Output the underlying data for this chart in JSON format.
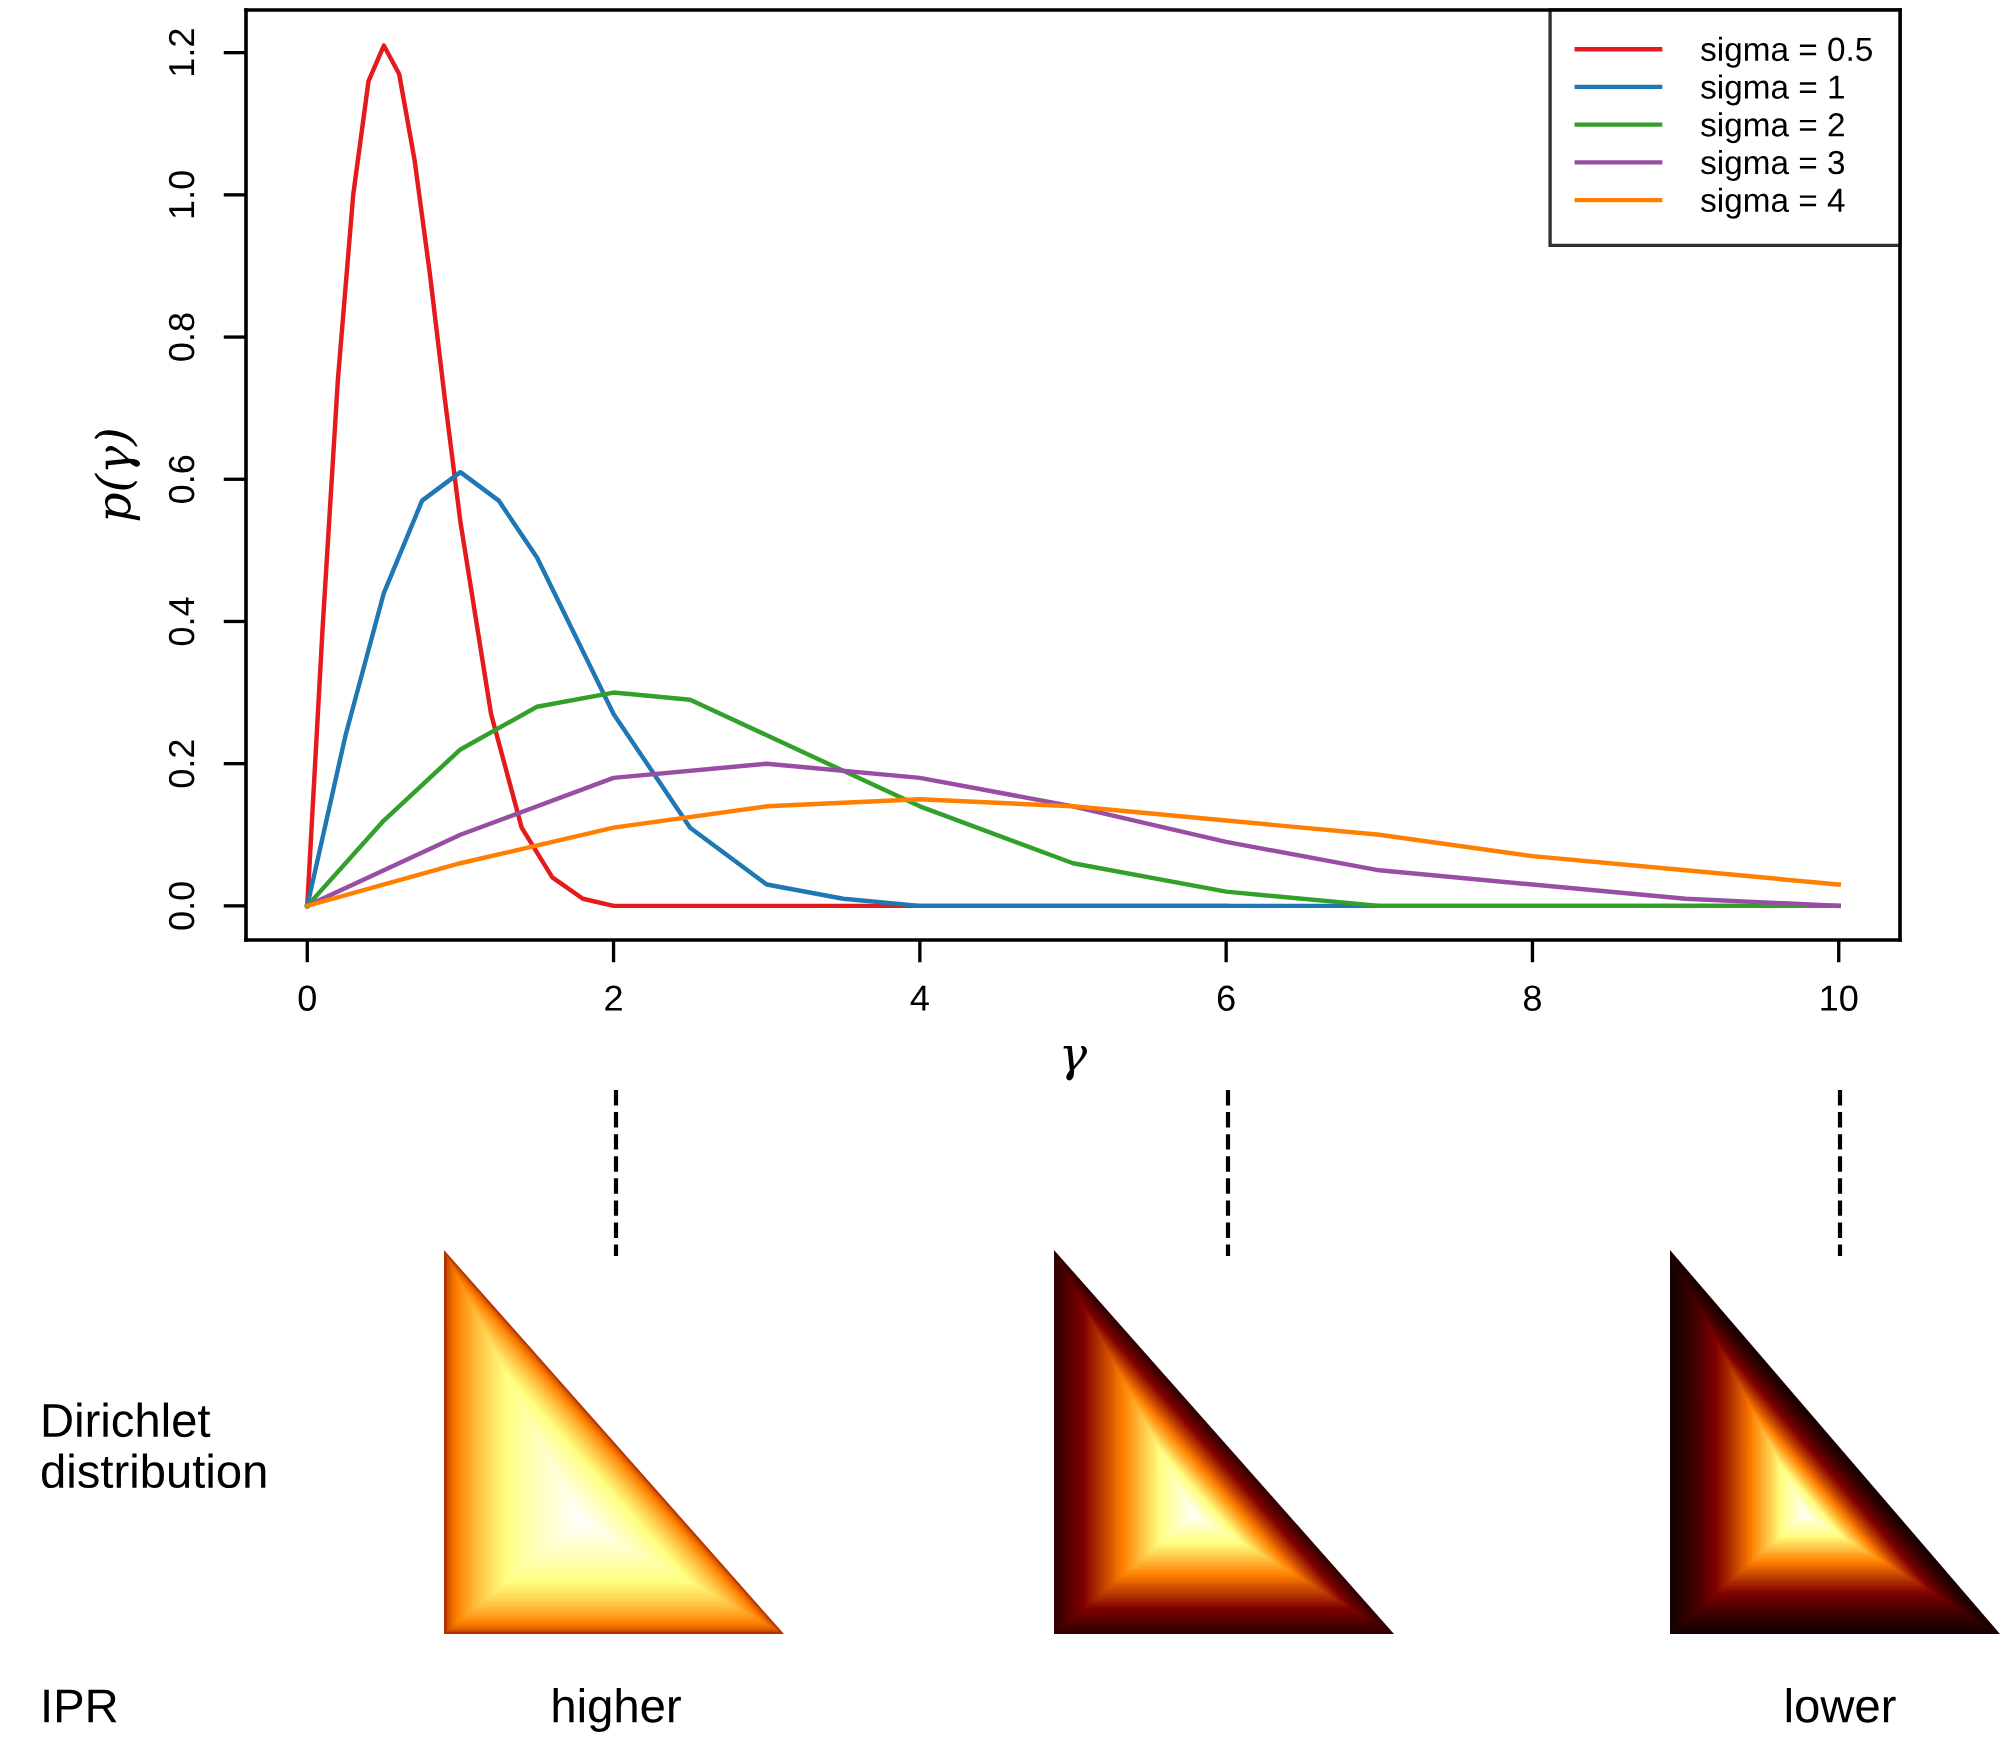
{
  "chart_data": {
    "type": "line",
    "xlabel": "γ",
    "ylabel": "p(γ)",
    "xlim": [
      -0.4,
      10.4
    ],
    "ylim": [
      -0.048,
      1.26
    ],
    "xticks": [
      0,
      2,
      4,
      6,
      8,
      10
    ],
    "yticks": [
      {
        "value": 0,
        "label": "0.0"
      },
      0.2,
      0.4,
      0.6,
      0.8,
      {
        "value": 1,
        "label": "1.0"
      },
      1.2
    ],
    "grid": false,
    "legend": "top right",
    "marker": "none",
    "line_style": "solid",
    "series": [
      {
        "name": "sigma = 0.5",
        "color": "#e41a1c",
        "x": [
          0,
          0.1,
          0.2,
          0.3,
          0.4,
          0.5,
          0.6,
          0.7,
          0.8,
          0.9,
          1.0,
          1.2,
          1.4,
          1.6,
          1.8,
          2,
          2.5,
          3,
          4,
          6
        ],
        "values": [
          0,
          0.39,
          0.74,
          1.0,
          1.16,
          1.21,
          1.17,
          1.05,
          0.89,
          0.71,
          0.54,
          0.27,
          0.11,
          0.04,
          0.01,
          0,
          0,
          0,
          0,
          0
        ]
      },
      {
        "name": "sigma = 1",
        "color": "#1f78b4",
        "x": [
          0,
          0.25,
          0.5,
          0.75,
          1,
          1.25,
          1.5,
          1.75,
          2,
          2.5,
          3,
          3.5,
          4,
          5,
          6,
          8,
          10
        ],
        "values": [
          0,
          0.24,
          0.44,
          0.57,
          0.61,
          0.57,
          0.49,
          0.38,
          0.27,
          0.11,
          0.03,
          0.01,
          0,
          0,
          0,
          0,
          0
        ]
      },
      {
        "name": "sigma = 2",
        "color": "#33a02c",
        "x": [
          0,
          0.5,
          1,
          1.5,
          2,
          2.5,
          3,
          3.5,
          4,
          5,
          6,
          7,
          8,
          10
        ],
        "values": [
          0,
          0.12,
          0.22,
          0.28,
          0.3,
          0.29,
          0.24,
          0.19,
          0.14,
          0.06,
          0.02,
          0,
          0,
          0
        ]
      },
      {
        "name": "sigma = 3",
        "color": "#984ea3",
        "x": [
          0,
          1,
          2,
          3,
          4,
          5,
          6,
          7,
          8,
          9,
          10
        ],
        "values": [
          0,
          0.1,
          0.18,
          0.2,
          0.18,
          0.14,
          0.09,
          0.05,
          0.03,
          0.01,
          0
        ]
      },
      {
        "name": "sigma = 4",
        "color": "#ff7f00",
        "x": [
          0,
          1,
          2,
          3,
          4,
          5,
          6,
          7,
          8,
          9,
          10
        ],
        "values": [
          0,
          0.06,
          0.11,
          0.14,
          0.15,
          0.14,
          0.12,
          0.1,
          0.07,
          0.05,
          0.03
        ]
      }
    ],
    "annotations": [
      "Dirichlet\ndistribution",
      "IPR",
      "higher",
      "lower"
    ]
  }
}
